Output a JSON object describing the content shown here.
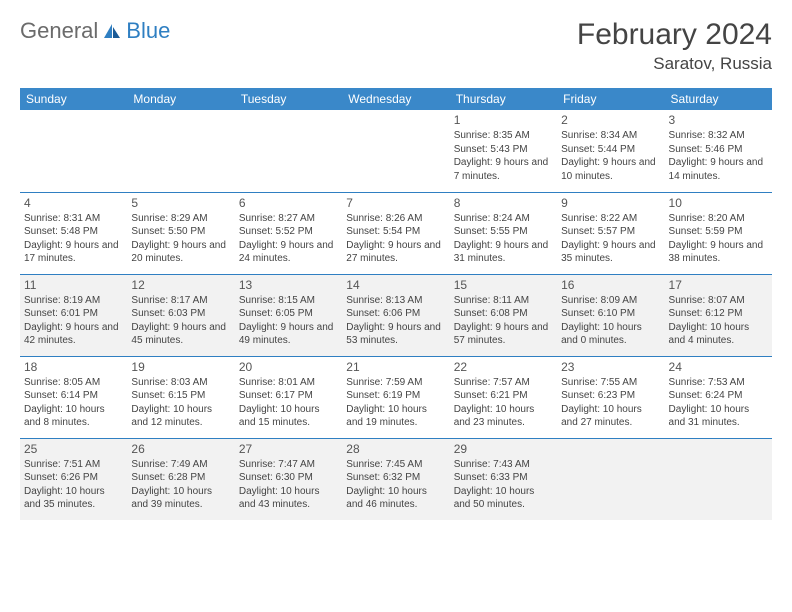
{
  "brand": {
    "word1": "General",
    "word2": "Blue"
  },
  "title": "February 2024",
  "location": "Saratov, Russia",
  "colors": {
    "header_bg": "#3a88c9",
    "header_text": "#ffffff",
    "rule": "#2f7fc2",
    "shade": "#f2f2f2",
    "page_bg": "#ffffff",
    "text": "#444444"
  },
  "day_headers": [
    "Sunday",
    "Monday",
    "Tuesday",
    "Wednesday",
    "Thursday",
    "Friday",
    "Saturday"
  ],
  "weeks": [
    [
      {
        "n": "",
        "sr": "",
        "ss": "",
        "dl": ""
      },
      {
        "n": "",
        "sr": "",
        "ss": "",
        "dl": ""
      },
      {
        "n": "",
        "sr": "",
        "ss": "",
        "dl": ""
      },
      {
        "n": "",
        "sr": "",
        "ss": "",
        "dl": ""
      },
      {
        "n": "1",
        "sr": "Sunrise: 8:35 AM",
        "ss": "Sunset: 5:43 PM",
        "dl": "Daylight: 9 hours and 7 minutes."
      },
      {
        "n": "2",
        "sr": "Sunrise: 8:34 AM",
        "ss": "Sunset: 5:44 PM",
        "dl": "Daylight: 9 hours and 10 minutes."
      },
      {
        "n": "3",
        "sr": "Sunrise: 8:32 AM",
        "ss": "Sunset: 5:46 PM",
        "dl": "Daylight: 9 hours and 14 minutes."
      }
    ],
    [
      {
        "n": "4",
        "sr": "Sunrise: 8:31 AM",
        "ss": "Sunset: 5:48 PM",
        "dl": "Daylight: 9 hours and 17 minutes."
      },
      {
        "n": "5",
        "sr": "Sunrise: 8:29 AM",
        "ss": "Sunset: 5:50 PM",
        "dl": "Daylight: 9 hours and 20 minutes."
      },
      {
        "n": "6",
        "sr": "Sunrise: 8:27 AM",
        "ss": "Sunset: 5:52 PM",
        "dl": "Daylight: 9 hours and 24 minutes."
      },
      {
        "n": "7",
        "sr": "Sunrise: 8:26 AM",
        "ss": "Sunset: 5:54 PM",
        "dl": "Daylight: 9 hours and 27 minutes."
      },
      {
        "n": "8",
        "sr": "Sunrise: 8:24 AM",
        "ss": "Sunset: 5:55 PM",
        "dl": "Daylight: 9 hours and 31 minutes."
      },
      {
        "n": "9",
        "sr": "Sunrise: 8:22 AM",
        "ss": "Sunset: 5:57 PM",
        "dl": "Daylight: 9 hours and 35 minutes."
      },
      {
        "n": "10",
        "sr": "Sunrise: 8:20 AM",
        "ss": "Sunset: 5:59 PM",
        "dl": "Daylight: 9 hours and 38 minutes."
      }
    ],
    [
      {
        "n": "11",
        "sr": "Sunrise: 8:19 AM",
        "ss": "Sunset: 6:01 PM",
        "dl": "Daylight: 9 hours and 42 minutes."
      },
      {
        "n": "12",
        "sr": "Sunrise: 8:17 AM",
        "ss": "Sunset: 6:03 PM",
        "dl": "Daylight: 9 hours and 45 minutes."
      },
      {
        "n": "13",
        "sr": "Sunrise: 8:15 AM",
        "ss": "Sunset: 6:05 PM",
        "dl": "Daylight: 9 hours and 49 minutes."
      },
      {
        "n": "14",
        "sr": "Sunrise: 8:13 AM",
        "ss": "Sunset: 6:06 PM",
        "dl": "Daylight: 9 hours and 53 minutes."
      },
      {
        "n": "15",
        "sr": "Sunrise: 8:11 AM",
        "ss": "Sunset: 6:08 PM",
        "dl": "Daylight: 9 hours and 57 minutes."
      },
      {
        "n": "16",
        "sr": "Sunrise: 8:09 AM",
        "ss": "Sunset: 6:10 PM",
        "dl": "Daylight: 10 hours and 0 minutes."
      },
      {
        "n": "17",
        "sr": "Sunrise: 8:07 AM",
        "ss": "Sunset: 6:12 PM",
        "dl": "Daylight: 10 hours and 4 minutes."
      }
    ],
    [
      {
        "n": "18",
        "sr": "Sunrise: 8:05 AM",
        "ss": "Sunset: 6:14 PM",
        "dl": "Daylight: 10 hours and 8 minutes."
      },
      {
        "n": "19",
        "sr": "Sunrise: 8:03 AM",
        "ss": "Sunset: 6:15 PM",
        "dl": "Daylight: 10 hours and 12 minutes."
      },
      {
        "n": "20",
        "sr": "Sunrise: 8:01 AM",
        "ss": "Sunset: 6:17 PM",
        "dl": "Daylight: 10 hours and 15 minutes."
      },
      {
        "n": "21",
        "sr": "Sunrise: 7:59 AM",
        "ss": "Sunset: 6:19 PM",
        "dl": "Daylight: 10 hours and 19 minutes."
      },
      {
        "n": "22",
        "sr": "Sunrise: 7:57 AM",
        "ss": "Sunset: 6:21 PM",
        "dl": "Daylight: 10 hours and 23 minutes."
      },
      {
        "n": "23",
        "sr": "Sunrise: 7:55 AM",
        "ss": "Sunset: 6:23 PM",
        "dl": "Daylight: 10 hours and 27 minutes."
      },
      {
        "n": "24",
        "sr": "Sunrise: 7:53 AM",
        "ss": "Sunset: 6:24 PM",
        "dl": "Daylight: 10 hours and 31 minutes."
      }
    ],
    [
      {
        "n": "25",
        "sr": "Sunrise: 7:51 AM",
        "ss": "Sunset: 6:26 PM",
        "dl": "Daylight: 10 hours and 35 minutes."
      },
      {
        "n": "26",
        "sr": "Sunrise: 7:49 AM",
        "ss": "Sunset: 6:28 PM",
        "dl": "Daylight: 10 hours and 39 minutes."
      },
      {
        "n": "27",
        "sr": "Sunrise: 7:47 AM",
        "ss": "Sunset: 6:30 PM",
        "dl": "Daylight: 10 hours and 43 minutes."
      },
      {
        "n": "28",
        "sr": "Sunrise: 7:45 AM",
        "ss": "Sunset: 6:32 PM",
        "dl": "Daylight: 10 hours and 46 minutes."
      },
      {
        "n": "29",
        "sr": "Sunrise: 7:43 AM",
        "ss": "Sunset: 6:33 PM",
        "dl": "Daylight: 10 hours and 50 minutes."
      },
      {
        "n": "",
        "sr": "",
        "ss": "",
        "dl": ""
      },
      {
        "n": "",
        "sr": "",
        "ss": "",
        "dl": ""
      }
    ]
  ],
  "shaded_weeks": [
    2,
    4
  ]
}
